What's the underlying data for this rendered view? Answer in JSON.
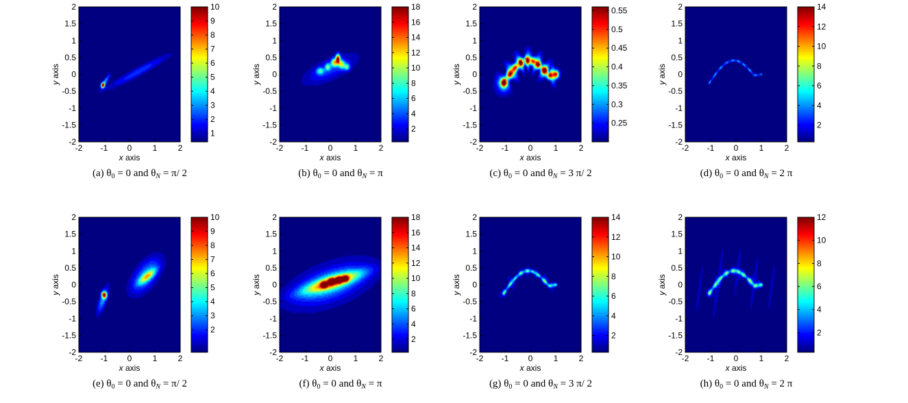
{
  "chart_data": [
    {
      "type": "heatmap",
      "caption": {
        "tag": "(a)",
        "theta_N": "π/ 2"
      },
      "xlabel": "x axis",
      "ylabel": "y axis",
      "xlim": [
        -2,
        2
      ],
      "ylim": [
        -2,
        2
      ],
      "x_ticks": [
        "-2",
        "-1",
        "0",
        "1",
        "2"
      ],
      "y_ticks": [
        "-2",
        "-1.5",
        "-1",
        "-0.5",
        "0",
        "0.5",
        "1",
        "1.5",
        "2"
      ],
      "colorbar_ticks": [
        "1",
        "2",
        "3",
        "4",
        "5",
        "6",
        "7",
        "8",
        "9",
        "10"
      ],
      "colorbar_range": [
        0.4,
        10
      ],
      "features": [
        {
          "kind": "blob",
          "x": -1.05,
          "y": -0.32,
          "sx": 0.05,
          "sy": 0.05,
          "peak": 9.2,
          "angle": 50
        },
        {
          "kind": "blob",
          "x": -0.95,
          "y": -0.2,
          "sx": 0.18,
          "sy": 0.05,
          "peak": 3.0,
          "angle": 50
        },
        {
          "kind": "blob",
          "x": 0.35,
          "y": 0.08,
          "sx": 0.9,
          "sy": 0.09,
          "peak": 2.0,
          "angle": 22
        }
      ]
    },
    {
      "type": "heatmap",
      "caption": {
        "tag": "(b)",
        "theta_N": "π"
      },
      "xlabel": "x axis",
      "ylabel": "y axis",
      "xlim": [
        -2,
        2
      ],
      "ylim": [
        -2,
        2
      ],
      "x_ticks": [
        "-2",
        "-1",
        "0",
        "1",
        "2"
      ],
      "y_ticks": [
        "-2",
        "-1.5",
        "-1",
        "-0.5",
        "0",
        "0.5",
        "1",
        "1.5",
        "2"
      ],
      "colorbar_ticks": [
        "2",
        "4",
        "6",
        "8",
        "10",
        "12",
        "14",
        "16",
        "18"
      ],
      "colorbar_range": [
        0.3,
        18
      ],
      "features": [
        {
          "kind": "blob",
          "x": 0.0,
          "y": 0.15,
          "sx": 0.75,
          "sy": 0.22,
          "peak": 3.5,
          "angle": 18
        },
        {
          "kind": "blob",
          "x": 0.3,
          "y": 0.45,
          "sx": 0.06,
          "sy": 0.1,
          "peak": 17,
          "angle": 0
        },
        {
          "kind": "blob",
          "x": 0.15,
          "y": 0.35,
          "sx": 0.08,
          "sy": 0.08,
          "peak": 10,
          "angle": 0
        },
        {
          "kind": "blob",
          "x": 0.45,
          "y": 0.3,
          "sx": 0.08,
          "sy": 0.08,
          "peak": 9,
          "angle": 0
        },
        {
          "kind": "blob",
          "x": -0.1,
          "y": 0.22,
          "sx": 0.07,
          "sy": 0.07,
          "peak": 7,
          "angle": 0
        },
        {
          "kind": "blob",
          "x": 0.65,
          "y": 0.22,
          "sx": 0.08,
          "sy": 0.07,
          "peak": 7,
          "angle": 0
        },
        {
          "kind": "blob",
          "x": -0.4,
          "y": 0.1,
          "sx": 0.1,
          "sy": 0.07,
          "peak": 6,
          "angle": 0
        }
      ]
    },
    {
      "type": "heatmap",
      "caption": {
        "tag": "(c)",
        "theta_N": "3 π/ 2"
      },
      "xlabel": "x axis",
      "ylabel": "y axis",
      "xlim": [
        -2,
        2
      ],
      "ylim": [
        -2,
        2
      ],
      "x_ticks": [
        "-2",
        "-1",
        "0",
        "1",
        "2"
      ],
      "y_ticks": [
        "-2",
        "-1.5",
        "-1",
        "-0.5",
        "0",
        "0.5",
        "1",
        "1.5",
        "2"
      ],
      "colorbar_ticks": [
        "0.25",
        "0.3",
        "0.35",
        "0.4",
        "0.45",
        "0.5",
        "0.55"
      ],
      "colorbar_range": [
        0.2,
        0.56
      ],
      "features": [
        {
          "kind": "curve",
          "peak": 0.54,
          "width": 0.08,
          "spread": 0.22,
          "base": 0.22,
          "wave_amp": 0.06,
          "wave_k": 14,
          "wave_angle": 45
        }
      ]
    },
    {
      "type": "heatmap",
      "caption": {
        "tag": "(d)",
        "theta_N": "2 π"
      },
      "xlabel": "x axis",
      "ylabel": "y axis",
      "xlim": [
        -2,
        2
      ],
      "ylim": [
        -2,
        2
      ],
      "x_ticks": [
        "-2",
        "-1",
        "0",
        "1",
        "2"
      ],
      "y_ticks": [
        "-2",
        "-1.5",
        "-1",
        "-0.5",
        "0",
        "0.5",
        "1",
        "1.5",
        "2"
      ],
      "colorbar_ticks": [
        "2",
        "4",
        "6",
        "8",
        "10",
        "12",
        "14"
      ],
      "colorbar_range": [
        0.3,
        14
      ],
      "features": [
        {
          "kind": "curve",
          "peak": 6,
          "width": 0.025,
          "spread": 0,
          "base": 0.3,
          "wave_amp": 0,
          "wave_k": 0,
          "wave_angle": 0
        }
      ]
    },
    {
      "type": "heatmap",
      "caption": {
        "tag": "(e)",
        "theta_N": "π/ 2"
      },
      "xlabel": "x axis",
      "ylabel": "y axis",
      "xlim": [
        -2,
        2
      ],
      "ylim": [
        -2,
        2
      ],
      "x_ticks": [
        "-2",
        "-1",
        "0",
        "1",
        "2"
      ],
      "y_ticks": [
        "-2",
        "-1.5",
        "-1",
        "-0.5",
        "0",
        "0.5",
        "1",
        "1.5",
        "2"
      ],
      "colorbar_ticks": [
        "2",
        "3",
        "4",
        "5",
        "6",
        "7",
        "8",
        "9",
        "10"
      ],
      "colorbar_range": [
        0.4,
        10
      ],
      "features": [
        {
          "kind": "blob",
          "x": -1.0,
          "y": -0.3,
          "sx": 0.06,
          "sy": 0.07,
          "peak": 8.5,
          "angle": 50
        },
        {
          "kind": "blob",
          "x": -1.05,
          "y": -0.45,
          "sx": 0.3,
          "sy": 0.1,
          "peak": 3.0,
          "angle": 65
        },
        {
          "kind": "blob",
          "x": 0.65,
          "y": 0.28,
          "sx": 0.5,
          "sy": 0.25,
          "peak": 3.0,
          "angle": 40
        },
        {
          "kind": "blob",
          "x": 0.7,
          "y": 0.25,
          "sx": 0.25,
          "sy": 0.08,
          "peak": 4.5,
          "angle": 30
        }
      ]
    },
    {
      "type": "heatmap",
      "caption": {
        "tag": "(f)",
        "theta_N": "π"
      },
      "xlabel": "x axis",
      "ylabel": "y axis",
      "xlim": [
        -2,
        2
      ],
      "ylim": [
        -2,
        2
      ],
      "x_ticks": [
        "-2",
        "-1",
        "0",
        "1",
        "2"
      ],
      "y_ticks": [
        "-2",
        "-1.5",
        "-1",
        "-0.5",
        "0",
        "0.5",
        "1",
        "1.5",
        "2"
      ],
      "colorbar_ticks": [
        "2",
        "4",
        "6",
        "8",
        "10",
        "12",
        "14",
        "16",
        "18"
      ],
      "colorbar_range": [
        0.3,
        18
      ],
      "features": [
        {
          "kind": "blob",
          "x": 0.0,
          "y": 0.0,
          "sx": 1.4,
          "sy": 0.55,
          "peak": 1.8,
          "angle": 15
        },
        {
          "kind": "blob",
          "x": 0.0,
          "y": 0.02,
          "sx": 0.95,
          "sy": 0.28,
          "peak": 5,
          "angle": 14
        },
        {
          "kind": "blob",
          "x": 0.1,
          "y": 0.08,
          "sx": 0.8,
          "sy": 0.12,
          "peak": 10,
          "angle": 13
        },
        {
          "kind": "blob",
          "x": 0.05,
          "y": 0.1,
          "sx": 0.08,
          "sy": 0.06,
          "peak": 16,
          "angle": 0
        },
        {
          "kind": "blob",
          "x": 0.35,
          "y": 0.14,
          "sx": 0.08,
          "sy": 0.06,
          "peak": 15,
          "angle": 0
        },
        {
          "kind": "blob",
          "x": 0.6,
          "y": 0.18,
          "sx": 0.08,
          "sy": 0.06,
          "peak": 14,
          "angle": 0
        },
        {
          "kind": "blob",
          "x": -0.25,
          "y": 0.0,
          "sx": 0.08,
          "sy": 0.06,
          "peak": 13,
          "angle": 0
        }
      ]
    },
    {
      "type": "heatmap",
      "caption": {
        "tag": "(g)",
        "theta_N": "3 π/ 2"
      },
      "xlabel": "x axis",
      "ylabel": "y axis",
      "xlim": [
        -2,
        2
      ],
      "ylim": [
        -2,
        2
      ],
      "x_ticks": [
        "-2",
        "-1",
        "0",
        "1",
        "2"
      ],
      "y_ticks": [
        "-2",
        "-1.5",
        "-1",
        "-0.5",
        "0",
        "0.5",
        "1",
        "1.5",
        "2"
      ],
      "colorbar_ticks": [
        "2",
        "4",
        "6",
        "8",
        "10",
        "12",
        "14"
      ],
      "colorbar_range": [
        0.3,
        14
      ],
      "features": [
        {
          "kind": "curve",
          "peak": 7,
          "width": 0.035,
          "spread": 0.1,
          "base": 0.3,
          "wave_amp": 0.4,
          "wave_k": 10,
          "wave_angle": 30
        }
      ]
    },
    {
      "type": "heatmap",
      "caption": {
        "tag": "(h)",
        "theta_N": "2 π"
      },
      "xlabel": "x axis",
      "ylabel": "y axis",
      "xlim": [
        -2,
        2
      ],
      "ylim": [
        -2,
        2
      ],
      "x_ticks": [
        "-2",
        "-1",
        "0",
        "1",
        "2"
      ],
      "y_ticks": [
        "-2",
        "-1.5",
        "-1",
        "-0.5",
        "0",
        "0.5",
        "1",
        "1.5",
        "2"
      ],
      "colorbar_ticks": [
        "2",
        "4",
        "6",
        "8",
        "10",
        "12"
      ],
      "colorbar_range": [
        0.3,
        12
      ],
      "features": [
        {
          "kind": "curve",
          "peak": 6.5,
          "width": 0.04,
          "spread": 0.12,
          "base": 0.3,
          "wave_amp": 0.6,
          "wave_k": 9,
          "wave_angle": -10
        }
      ]
    }
  ],
  "colormap": "jet"
}
